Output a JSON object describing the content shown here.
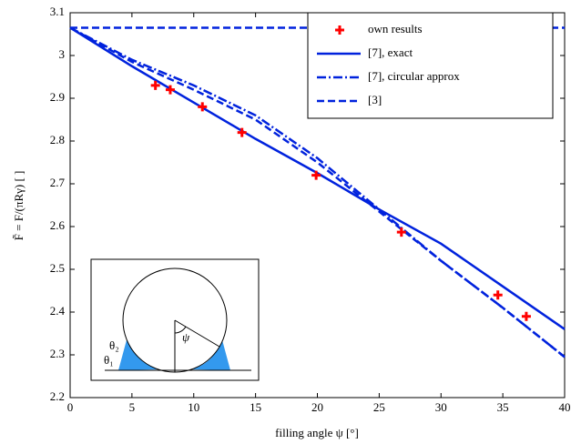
{
  "chart_data": {
    "type": "line",
    "xlabel": "filling angle ψ [°]",
    "ylabel": "F̃ = F/(πRγ) [ ]",
    "xlim": [
      0,
      40
    ],
    "xticks": [
      0,
      5,
      10,
      15,
      20,
      25,
      30,
      35,
      40
    ],
    "ylim": [
      2.2,
      3.1
    ],
    "yticks": [
      2.2,
      2.3,
      2.4,
      2.5,
      2.6,
      2.7,
      2.8,
      2.9,
      3,
      3.1
    ],
    "legend": "upper right",
    "scatter": {
      "name": "own results",
      "color": "#ff0000",
      "x": [
        6.9,
        8.1,
        10.7,
        13.9,
        19.9,
        26.8,
        34.6,
        36.9
      ],
      "values": [
        2.93,
        2.92,
        2.88,
        2.82,
        2.72,
        2.587,
        2.44,
        2.39
      ]
    },
    "x": [
      0,
      5,
      10,
      15,
      20,
      25,
      30,
      35,
      40
    ],
    "series": [
      {
        "name": "[7], exact",
        "color": "#0022dd",
        "style": "solid",
        "values": [
          3.065,
          2.975,
          2.89,
          2.805,
          2.725,
          2.64,
          2.56,
          2.46,
          2.36
        ]
      },
      {
        "name": "[7], circular approx",
        "color": "#0022dd",
        "style": "dashdot",
        "values": [
          3.065,
          2.99,
          2.93,
          2.86,
          2.76,
          2.64,
          2.52,
          2.41,
          2.295
        ]
      },
      {
        "name": "[3]",
        "color": "#0022dd",
        "style": "dashed",
        "values": [
          3.065,
          2.985,
          2.92,
          2.85,
          2.75,
          2.635,
          2.52,
          2.41,
          2.295
        ]
      },
      {
        "color": "#0022dd",
        "style": "dashed",
        "values": [
          3.065,
          3.065,
          3.065,
          3.065,
          3.065,
          3.065,
          3.065,
          3.065,
          3.065
        ]
      }
    ],
    "inset_labels": [
      "θ₂",
      "θ₁",
      "ψ"
    ]
  }
}
